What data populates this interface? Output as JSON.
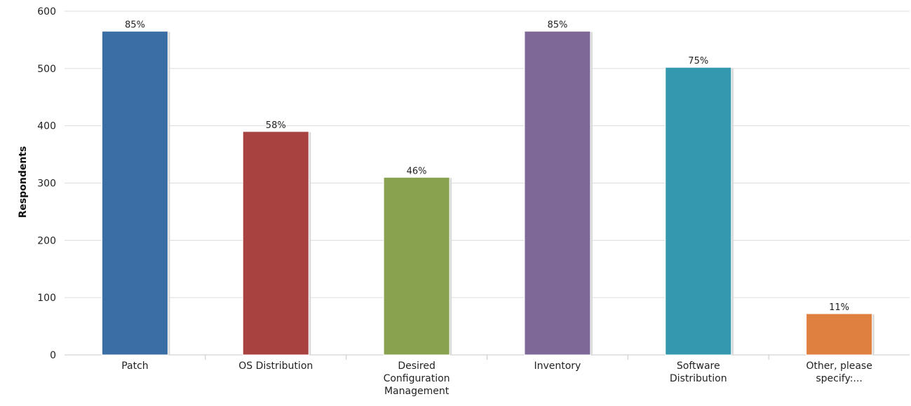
{
  "chart_data": {
    "type": "bar",
    "title": "",
    "xlabel": "",
    "ylabel": "Respondents",
    "ylim": [
      0,
      600
    ],
    "yticks": [
      0,
      100,
      200,
      300,
      400,
      500,
      600
    ],
    "grid": true,
    "categories": [
      "Patch",
      "OS Distribution",
      "Desired Configuration Management",
      "Inventory",
      "Software Distribution",
      "Other, please specify:..."
    ],
    "category_lines": [
      [
        "Patch"
      ],
      [
        "OS Distribution"
      ],
      [
        "Desired",
        "Configuration",
        "Management"
      ],
      [
        "Inventory"
      ],
      [
        "Software",
        "Distribution"
      ],
      [
        "Other, please",
        "specify:..."
      ]
    ],
    "values": [
      565,
      390,
      310,
      565,
      502,
      72
    ],
    "data_labels": [
      "85%",
      "58%",
      "46%",
      "85%",
      "75%",
      "11%"
    ],
    "colors": [
      "#3a6ea5",
      "#a84241",
      "#88a24f",
      "#7e6898",
      "#3498ae",
      "#df8040"
    ]
  }
}
